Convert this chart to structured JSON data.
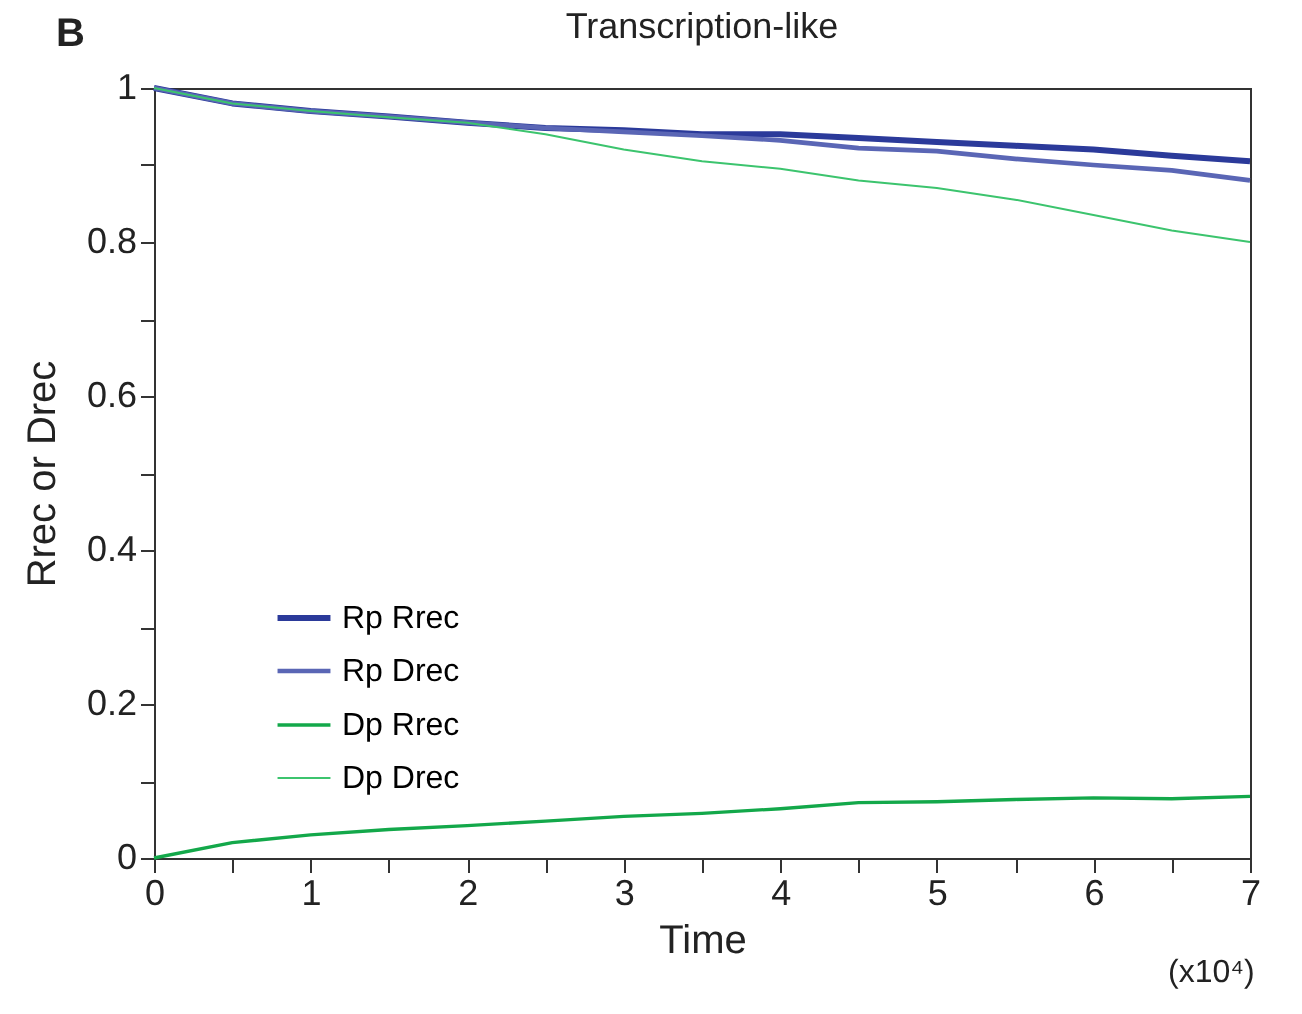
{
  "chart_data": {
    "type": "line",
    "title": "Transcription-like",
    "xlabel": "Time",
    "ylabel": "Rrec or Drec",
    "annotations": [
      "B",
      "(x10⁴)"
    ],
    "x": [
      0,
      0.5,
      1,
      1.5,
      2,
      2.5,
      3,
      3.5,
      4,
      4.5,
      5,
      5.5,
      6,
      6.5,
      7
    ],
    "series": [
      {
        "name": "Rp Rrec",
        "color": "#2b3a9a",
        "values": [
          1,
          0.98,
          0.97,
          0.963,
          0.955,
          0.948,
          0.945,
          0.94,
          0.94,
          0.935,
          0.93,
          0.925,
          0.92,
          0.912,
          0.905
        ]
      },
      {
        "name": "Rp Drec",
        "color": "#5a66b5",
        "values": [
          1,
          0.98,
          0.97,
          0.963,
          0.955,
          0.948,
          0.943,
          0.938,
          0.932,
          0.922,
          0.918,
          0.908,
          0.9,
          0.893,
          0.88
        ]
      },
      {
        "name": "Dp Rrec",
        "color": "#13a84a",
        "values": [
          0,
          0.02,
          0.03,
          0.037,
          0.042,
          0.048,
          0.054,
          0.058,
          0.064,
          0.072,
          0.073,
          0.076,
          0.078,
          0.077,
          0.08
        ]
      },
      {
        "name": "Dp Drec",
        "color": "#3cc46e",
        "values": [
          1,
          0.98,
          0.97,
          0.962,
          0.955,
          0.94,
          0.92,
          0.905,
          0.895,
          0.88,
          0.87,
          0.855,
          0.835,
          0.815,
          0.8
        ]
      }
    ],
    "xlim": [
      0,
      7
    ],
    "xticks": [
      0,
      {
        "value": 0.5,
        "label": null
      },
      1,
      {
        "value": 1.5,
        "label": null
      },
      2,
      {
        "value": 2.5,
        "label": null
      },
      3,
      {
        "value": 3.5,
        "label": null
      },
      4,
      {
        "value": 4.5,
        "label": null
      },
      5,
      {
        "value": 5.5,
        "label": null
      },
      6,
      {
        "value": 6.5,
        "label": null
      },
      7
    ],
    "ylim": [
      0,
      1
    ],
    "yticks": [
      0,
      {
        "value": 0.1,
        "label": null
      },
      {
        "value": 0.2,
        "label": "0.2"
      },
      {
        "value": 0.3,
        "label": null
      },
      {
        "value": 0.4,
        "label": "0.4"
      },
      {
        "value": 0.5,
        "label": null
      },
      {
        "value": 0.6,
        "label": "0.6"
      },
      {
        "value": 0.7,
        "label": null
      },
      {
        "value": 0.8,
        "label": "0.8"
      },
      {
        "value": 0.9,
        "label": null
      },
      1
    ],
    "grid": false,
    "legend": "bottom left",
    "marker": "none",
    "line_style": "solid"
  }
}
